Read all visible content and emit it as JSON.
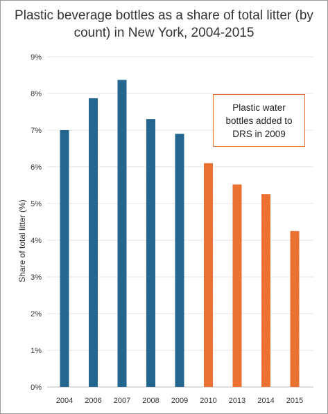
{
  "chart_data": {
    "type": "bar",
    "title": "Plastic beverage bottles as a share of total litter (by count) in New York, 2004-2015",
    "ylabel": "Share of total litter (%)",
    "xlabel": "",
    "categories": [
      "2004",
      "2006",
      "2007",
      "2008",
      "2009",
      "2010",
      "2013",
      "2014",
      "2015"
    ],
    "values": [
      7.0,
      7.87,
      8.37,
      7.3,
      6.9,
      6.1,
      5.52,
      5.26,
      4.25
    ],
    "ylim": [
      0,
      9
    ],
    "yticks": [
      "0%",
      "1%",
      "2%",
      "3%",
      "4%",
      "5%",
      "6%",
      "7%",
      "8%",
      "9%"
    ],
    "grid": true,
    "annotation": "Plastic water bottles added to DRS in 2009",
    "colors": {
      "before": "#1f5f86",
      "after": "#e86a28",
      "grid": "#e6e6e6"
    },
    "color_split_index": 5
  }
}
